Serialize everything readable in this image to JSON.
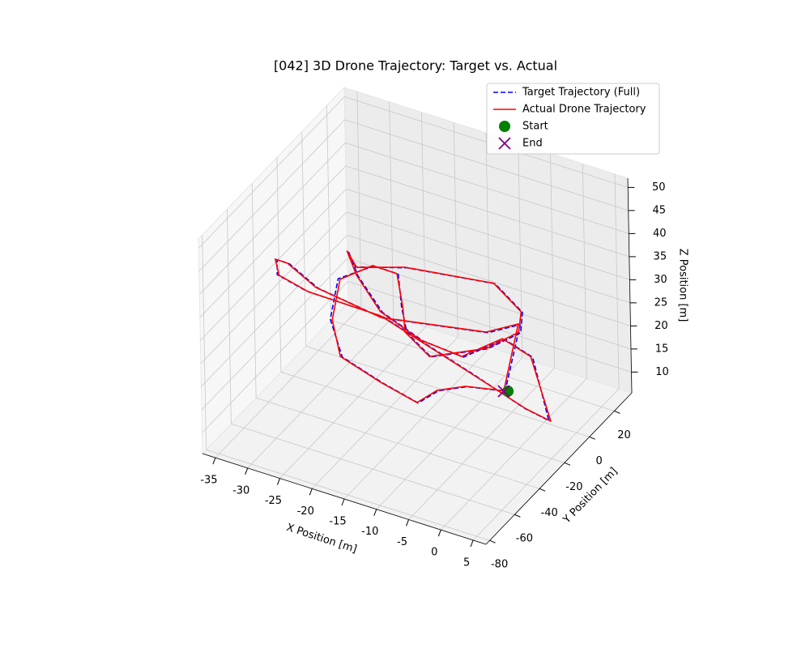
{
  "chart_data": {
    "type": "line3d",
    "title": "[042] 3D Drone Trajectory: Target vs. Actual",
    "xlabel": "X Position [m]",
    "ylabel": "Y Position [m]",
    "zlabel": "Z Position [m]",
    "xlim": [
      -37,
      7
    ],
    "ylim": [
      -83,
      34
    ],
    "zlim": [
      5.5,
      52
    ],
    "xticks": [
      -35,
      -30,
      -25,
      -20,
      -15,
      -10,
      -5,
      0,
      5
    ],
    "yticks": [
      -80,
      -60,
      -40,
      -20,
      0,
      20
    ],
    "zticks": [
      10,
      15,
      20,
      25,
      30,
      35,
      40,
      45,
      50
    ],
    "grid": true,
    "legend": "upper right",
    "series": [
      {
        "name": "Target Trajectory (Full)",
        "color": "#0000ff",
        "dashed": true,
        "x": [
          -1.5,
          -7.1,
          -10.0,
          -11.0,
          -17.5,
          -21.5,
          -22.4,
          -26.1,
          -23.3,
          -19.5,
          -15.3,
          -16.6,
          -11.0,
          -5.2,
          -3.1,
          -0.4,
          -6.9,
          -19.2,
          -25.4,
          -28.0,
          -24.1,
          -17.0,
          -13.8,
          -7.1,
          -4.3,
          1.1,
          6.5,
          2.3,
          -4.3,
          -16.5,
          -28.4,
          -33.8,
          -35.5,
          -33.6,
          -27.4,
          -16.4,
          -7.0,
          -4.1,
          -2.0
        ],
        "y": [
          -19.6,
          -24.7,
          -32.5,
          -43.5,
          -38.4,
          -49.7,
          -54.0,
          -28.6,
          -14.3,
          -14.5,
          -33.5,
          -23.1,
          -32.9,
          -17.4,
          -1.7,
          -13.6,
          -1.9,
          -9.2,
          -18.4,
          -10.6,
          -23.1,
          -40.1,
          -24.9,
          -26.8,
          -8.6,
          -13.8,
          -29.2,
          -26.6,
          -34.8,
          -42.5,
          -41.9,
          -37.7,
          -28.9,
          -29.0,
          -38.0,
          -43.4,
          -7.8,
          3.1,
          -20.4
        ],
        "z": [
          17,
          17,
          17,
          17,
          17,
          24,
          33,
          33,
          33,
          33,
          33,
          24,
          24,
          24,
          24,
          33,
          33,
          33,
          33,
          33,
          33,
          33,
          24,
          24,
          24,
          24,
          17,
          17,
          24,
          33,
          33,
          33,
          33,
          33,
          33,
          33,
          24,
          24,
          17
        ]
      },
      {
        "name": "Actual Drone Trajectory",
        "color": "#ff0000",
        "dashed": false,
        "x": [
          -1.7,
          -7.3,
          -10.2,
          -11.2,
          -17.8,
          -21.8,
          -22.1,
          -25.8,
          -23.5,
          -19.7,
          -15.1,
          -16.9,
          -11.2,
          -5.4,
          -3.4,
          -0.6,
          -7.1,
          -19.5,
          -25.2,
          -28.2,
          -24.3,
          -17.3,
          -14.1,
          -7.4,
          -4.6,
          0.8,
          6.8,
          2.5,
          -4.6,
          -16.8,
          -28.2,
          -33.5,
          -35.8,
          -33.9,
          -27.7,
          -16.6,
          -7.3,
          -4.4,
          -2.2
        ],
        "y": [
          -19.6,
          -24.7,
          -32.5,
          -43.5,
          -38.4,
          -49.7,
          -54.0,
          -28.6,
          -14.3,
          -14.5,
          -33.5,
          -23.1,
          -32.9,
          -17.4,
          -1.7,
          -13.6,
          -1.9,
          -9.2,
          -18.4,
          -10.6,
          -23.1,
          -40.1,
          -24.9,
          -26.8,
          -8.6,
          -13.8,
          -29.2,
          -26.6,
          -34.8,
          -42.5,
          -41.9,
          -37.7,
          -28.9,
          -29.0,
          -38.0,
          -43.4,
          -7.8,
          3.1,
          -20.4
        ],
        "z": [
          17,
          17,
          17,
          17,
          17,
          24,
          33,
          33,
          33,
          33,
          33,
          24,
          24,
          24,
          24,
          33,
          33,
          33,
          33,
          33,
          33,
          33,
          24,
          24,
          24,
          24,
          17,
          17,
          24,
          33,
          33,
          33,
          33,
          33,
          33,
          33,
          24,
          24,
          17
        ]
      }
    ],
    "markers": [
      {
        "name": "Start",
        "marker": "o",
        "color": "#008000",
        "x": -1.7,
        "y": -19.6,
        "z": 17
      },
      {
        "name": "End",
        "marker": "x",
        "color": "#800080",
        "x": -2.2,
        "y": -20.4,
        "z": 17
      }
    ]
  }
}
